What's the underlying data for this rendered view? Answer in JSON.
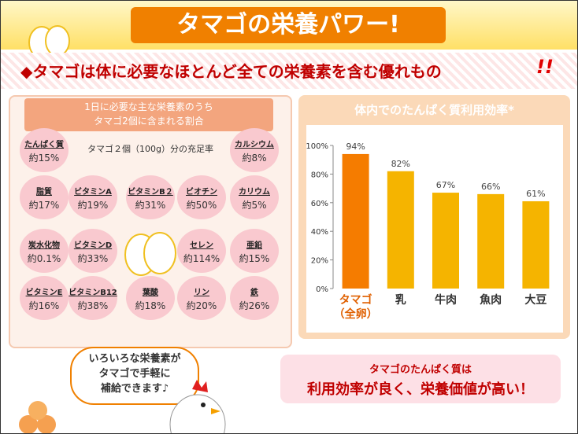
{
  "header": {
    "title": "タマゴの栄養パワー!",
    "subtitle": "◆タマゴは体に必要なほとんど全ての栄養素を含む優れもの",
    "subtitle_mark": "!!"
  },
  "nutrients": {
    "title": "1日に必要な主な栄養素のうち\nタマゴ2個に含まれる割合",
    "caption": "タマゴ２個（100g）分の充足率",
    "items": [
      {
        "name": "たんぱく質",
        "amount": "約15%"
      },
      {
        "name": "カルシウム",
        "amount": "約8%"
      },
      {
        "name": "脂質",
        "amount": "約17%"
      },
      {
        "name": "ビタミンA",
        "amount": "約19%"
      },
      {
        "name": "ビタミンB２",
        "amount": "約31%"
      },
      {
        "name": "ビオチン",
        "amount": "約50%"
      },
      {
        "name": "カリウム",
        "amount": "約5%"
      },
      {
        "name": "炭水化物",
        "amount": "約0.1%"
      },
      {
        "name": "ビタミンD",
        "amount": "約33%"
      },
      {
        "name": "セレン",
        "amount": "約114%"
      },
      {
        "name": "亜鉛",
        "amount": "約15%"
      },
      {
        "name": "ビタミンE",
        "amount": "約16%"
      },
      {
        "name": "ビタミンB12",
        "amount": "約38%"
      },
      {
        "name": "葉酸",
        "amount": "約18%"
      },
      {
        "name": "リン",
        "amount": "約20%"
      },
      {
        "name": "鉄",
        "amount": "約26%"
      }
    ]
  },
  "chart_data": {
    "type": "bar",
    "title": "体内でのたんぱく質利用効率*",
    "categories": [
      "タマゴ\n（全卵）",
      "乳",
      "牛肉",
      "魚肉",
      "大豆"
    ],
    "values": [
      94,
      82,
      67,
      66,
      61
    ],
    "value_labels": [
      "94%",
      "82%",
      "67%",
      "66%",
      "61%"
    ],
    "colors": [
      "#f57c00",
      "#f5b400",
      "#f5b400",
      "#f5b400",
      "#f5b400"
    ],
    "ylim": [
      0,
      100
    ],
    "yticks": [
      {
        "value": 0,
        "label": "0%"
      },
      {
        "value": 20,
        "label": "20%"
      },
      {
        "value": 40,
        "label": "40%"
      },
      {
        "value": 60,
        "label": "60%"
      },
      {
        "value": 80,
        "label": "80%"
      },
      {
        "value": 100,
        "label": "100%"
      }
    ]
  },
  "callout": {
    "text": "いろいろな栄養素が\nタマゴで手軽に\n補給できます♪"
  },
  "conclusion": {
    "line1": "タマゴのたんぱく質は",
    "line2": "利用効率が良く、栄養価値が高い！"
  }
}
